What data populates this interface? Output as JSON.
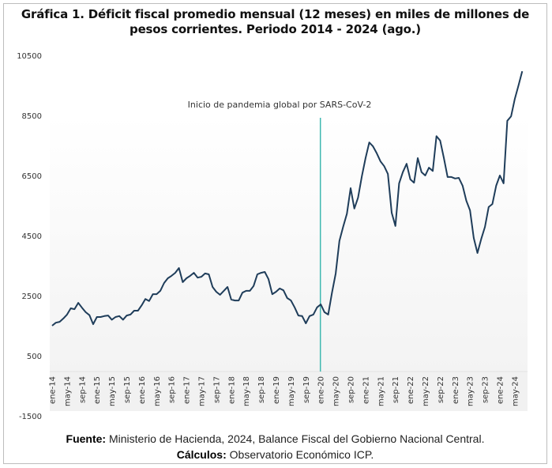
{
  "chart_data": {
    "type": "line",
    "title": "Gráfica 1. Déficit fiscal promedio mensual (12 meses) en miles de millones de pesos corrientes. Periodo 2014 - 2024 (ago.)",
    "title_lines": [
      "Gráfica 1. Déficit fiscal promedio mensual (12 meses) en miles de millones de",
      "pesos corrientes. Periodo 2014 - 2024 (ago.)"
    ],
    "xlabel": "",
    "ylabel": "",
    "ylim": [
      -1500,
      10500
    ],
    "y_ticks": [
      10500,
      8500,
      6500,
      4500,
      2500,
      500,
      -1500
    ],
    "x_tick_labels": [
      "ene-14",
      "may-14",
      "sep-14",
      "ene-15",
      "may-15",
      "sep-15",
      "ene-16",
      "may-16",
      "sep-16",
      "ene-17",
      "may-17",
      "sep-17",
      "ene-18",
      "may-18",
      "sep-18",
      "ene-19",
      "may-19",
      "sep-19",
      "ene-20",
      "may-20",
      "sep-20",
      "ene-21",
      "may-21",
      "sep-21",
      "ene-22",
      "may-22",
      "sep-22",
      "ene-23",
      "may-23",
      "sep-23",
      "ene-24",
      "may-24"
    ],
    "x_start": "ene-14",
    "x_end": "ago-24",
    "grid": false,
    "legend": "none",
    "annotation": {
      "text": "Inicio de pandemia global por SARS-CoV-2",
      "at": "ene-20",
      "color": "#3fb8b0"
    },
    "series": [
      {
        "name": "Déficit fiscal promedio mensual (12 meses)",
        "color": "#1f3d5a",
        "values": [
          1500,
          1600,
          1630,
          1740,
          1870,
          2080,
          2050,
          2260,
          2100,
          1950,
          1850,
          1550,
          1790,
          1790,
          1820,
          1840,
          1700,
          1790,
          1820,
          1700,
          1840,
          1870,
          2000,
          2000,
          2180,
          2390,
          2320,
          2550,
          2550,
          2660,
          2920,
          3080,
          3160,
          3260,
          3420,
          2950,
          3080,
          3160,
          3260,
          3100,
          3130,
          3240,
          3210,
          2790,
          2630,
          2530,
          2660,
          2790,
          2370,
          2340,
          2340,
          2600,
          2660,
          2660,
          2820,
          3210,
          3260,
          3290,
          3050,
          2550,
          2630,
          2740,
          2680,
          2420,
          2340,
          2110,
          1840,
          1820,
          1580,
          1820,
          1870,
          2110,
          2210,
          1950,
          1870,
          2600,
          3240,
          4320,
          4790,
          5230,
          6080,
          5400,
          5760,
          6470,
          7080,
          7600,
          7470,
          7240,
          6970,
          6810,
          6550,
          5260,
          4820,
          6240,
          6610,
          6890,
          6370,
          6260,
          7080,
          6610,
          6500,
          6760,
          6650,
          7810,
          7660,
          7080,
          6450,
          6450,
          6400,
          6420,
          6160,
          5660,
          5340,
          4420,
          3920,
          4390,
          4790,
          5450,
          5550,
          6160,
          6500,
          6240,
          8320,
          8470,
          9050,
          9500,
          9970
        ]
      }
    ]
  },
  "footer": {
    "source_label": "Fuente:",
    "source_text": " Ministerio de Hacienda, 2024, Balance Fiscal del Gobierno Nacional Central.",
    "calc_label": "Cálculos:",
    "calc_text": " Observatorio Económico ICP."
  }
}
